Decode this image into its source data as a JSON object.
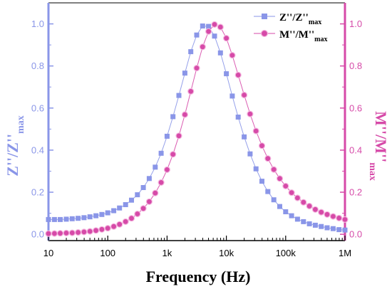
{
  "chart_data": {
    "type": "scatter",
    "xlabel": "Frequency (Hz)",
    "x_scale": "log",
    "xlim": [
      10,
      1000000
    ],
    "x_ticks": [
      {
        "value": 10,
        "label": "10"
      },
      {
        "value": 100,
        "label": "100"
      },
      {
        "value": 1000,
        "label": "1k"
      },
      {
        "value": 10000,
        "label": "10k"
      },
      {
        "value": 100000,
        "label": "100k"
      },
      {
        "value": 1000000,
        "label": "1M"
      }
    ],
    "ylim": [
      -0.03,
      1.1
    ],
    "y_ticks": [
      "0.0",
      "0.2",
      "0.4",
      "0.6",
      "0.8",
      "1.0"
    ],
    "y_left_label": {
      "main": "Z''/Z''",
      "sub": "max"
    },
    "y_right_label": {
      "main": "M''/M''",
      "sub": "max"
    },
    "left_axis_color": "#8a96e8",
    "right_axis_color": "#d64aa8",
    "legend_position": "top-right",
    "series": [
      {
        "name_main": "Z''/Z''",
        "name_sub": "max",
        "marker": "square",
        "color": "#8a96e8",
        "x": [
          10,
          12.6,
          15.8,
          20,
          25.1,
          31.6,
          39.8,
          50.1,
          63.1,
          79.4,
          100,
          126,
          158,
          200,
          251,
          316,
          398,
          501,
          631,
          794,
          1000,
          1259,
          1585,
          1995,
          2512,
          3162,
          3981,
          5012,
          6310,
          7943,
          10000,
          12589,
          15849,
          19953,
          25119,
          31623,
          39811,
          50119,
          63096,
          79433,
          100000,
          125893,
          158489,
          199526,
          251189,
          316228,
          398107,
          501187,
          630957,
          794328,
          1000000
        ],
        "y": [
          0.07,
          0.07,
          0.07,
          0.072,
          0.074,
          0.076,
          0.079,
          0.083,
          0.088,
          0.094,
          0.102,
          0.112,
          0.125,
          0.141,
          0.162,
          0.188,
          0.222,
          0.265,
          0.319,
          0.385,
          0.466,
          0.559,
          0.66,
          0.766,
          0.868,
          0.947,
          0.99,
          0.988,
          0.942,
          0.862,
          0.763,
          0.657,
          0.557,
          0.463,
          0.382,
          0.311,
          0.252,
          0.203,
          0.164,
          0.132,
          0.107,
          0.088,
          0.072,
          0.06,
          0.05,
          0.043,
          0.037,
          0.031,
          0.027,
          0.022,
          0.02
        ]
      },
      {
        "name_main": "M''/M''",
        "name_sub": "max",
        "marker": "circle",
        "color": "#d64aa8",
        "x": [
          10,
          12.6,
          15.8,
          20,
          25.1,
          31.6,
          39.8,
          50.1,
          63.1,
          79.4,
          100,
          126,
          158,
          200,
          251,
          316,
          398,
          501,
          631,
          794,
          1000,
          1259,
          1585,
          1995,
          2512,
          3162,
          3981,
          5012,
          6310,
          7943,
          10000,
          12589,
          15849,
          19953,
          25119,
          31623,
          39811,
          50119,
          63096,
          79433,
          100000,
          125893,
          158489,
          199526,
          251189,
          316228,
          398107,
          501187,
          630957,
          794328,
          1000000
        ],
        "y": [
          0.003,
          0.004,
          0.005,
          0.006,
          0.007,
          0.009,
          0.011,
          0.014,
          0.018,
          0.023,
          0.029,
          0.037,
          0.047,
          0.06,
          0.076,
          0.097,
          0.123,
          0.155,
          0.196,
          0.246,
          0.307,
          0.38,
          0.468,
          0.569,
          0.679,
          0.79,
          0.891,
          0.964,
          0.997,
          0.985,
          0.932,
          0.851,
          0.757,
          0.662,
          0.572,
          0.491,
          0.421,
          0.36,
          0.308,
          0.265,
          0.229,
          0.198,
          0.173,
          0.152,
          0.134,
          0.118,
          0.105,
          0.094,
          0.085,
          0.077,
          0.07
        ]
      }
    ]
  }
}
